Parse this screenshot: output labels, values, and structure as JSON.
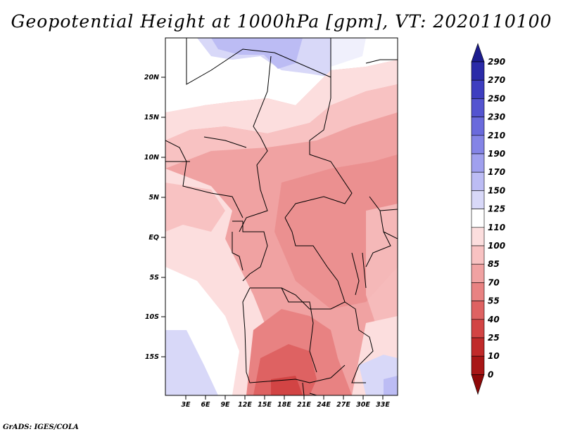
{
  "title": "Geopotential Height at 1000hPa [gpm], VT: 2020110100",
  "credit": "GrADS: IGES/COLA",
  "lat_labels": [
    "20N",
    "15N",
    "10N",
    "5N",
    "EQ",
    "5S",
    "10S",
    "15S"
  ],
  "lon_labels": [
    "3E",
    "6E",
    "9E",
    "12E",
    "15E",
    "18E",
    "21E",
    "24E",
    "27E",
    "30E",
    "33E"
  ],
  "colorbar": {
    "labels": [
      "290",
      "270",
      "250",
      "230",
      "210",
      "190",
      "170",
      "150",
      "125",
      "110",
      "100",
      "85",
      "70",
      "55",
      "40",
      "25",
      "10",
      "0"
    ],
    "colors": [
      "#1c1c8e",
      "#2b2ba8",
      "#3e3ec0",
      "#5454d0",
      "#6a6adc",
      "#8484e6",
      "#a0a0ee",
      "#bcbcf4",
      "#d8d8f8",
      "#ffffff",
      "#fcdede",
      "#f8c2c2",
      "#f0a2a2",
      "#e88282",
      "#de6262",
      "#d24444",
      "#c02a2a",
      "#a81616",
      "#8e0808"
    ]
  },
  "map_extent": {
    "lon": [
      0,
      35
    ],
    "lat": [
      -20,
      24
    ]
  }
}
